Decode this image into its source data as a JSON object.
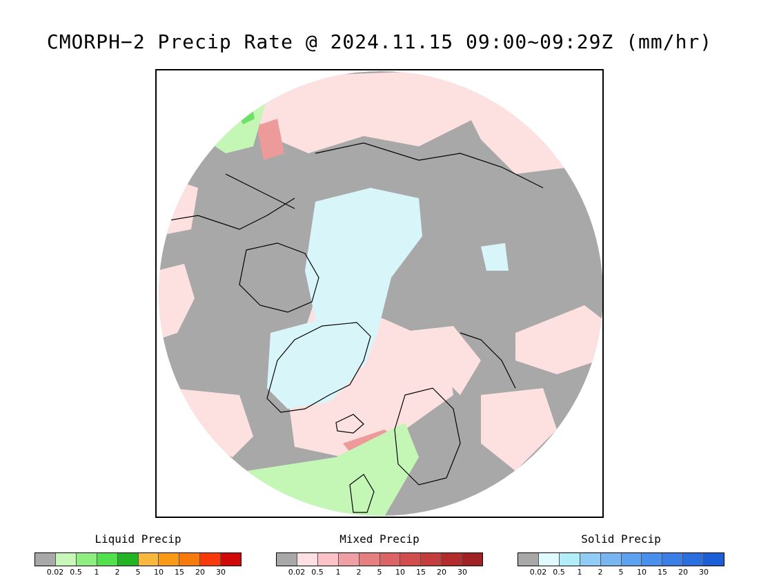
{
  "title": "CMORPH−2 Precip Rate @ 2024.11.15 09:00~09:29Z (mm/hr)",
  "map": {
    "colors": {
      "background_gray": "#a8a8a8",
      "mixed_light": "#fde0e0",
      "snow_light": "#d8f6fa",
      "rain_light": "#c4f7b6",
      "rain_mid": "#6ee066",
      "mixed_mid": "#ec9a9a",
      "coast": "#000000"
    }
  },
  "legends": [
    {
      "title": "Liquid Precip",
      "colors": [
        "#a8a8a8",
        "#c8f8b8",
        "#8eee80",
        "#52e04e",
        "#22b422",
        "#f8b83e",
        "#f89a18",
        "#f87a0a",
        "#f83a0a",
        "#d00808"
      ],
      "ticks": [
        "0.02",
        "0.5",
        "1",
        "2",
        "5",
        "10",
        "15",
        "20",
        "30"
      ]
    },
    {
      "title": "Mixed Precip",
      "colors": [
        "#a8a8a8",
        "#fde0e4",
        "#fbc3c8",
        "#f0a0a4",
        "#e68080",
        "#dc6464",
        "#d24e4e",
        "#c43c3c",
        "#b22c2c",
        "#a02222"
      ],
      "ticks": [
        "0.02",
        "0.5",
        "1",
        "2",
        "5",
        "10",
        "15",
        "20",
        "30"
      ]
    },
    {
      "title": "Solid Precip",
      "colors": [
        "#a8a8a8",
        "#e0fafe",
        "#b0eefa",
        "#90ccf6",
        "#78b6f2",
        "#5ca2f0",
        "#4890ec",
        "#3a7ee6",
        "#2a6ee0",
        "#1a5ed8"
      ],
      "ticks": [
        "0.02",
        "0.5",
        "1",
        "2",
        "5",
        "10",
        "15",
        "20",
        "30"
      ]
    }
  ]
}
